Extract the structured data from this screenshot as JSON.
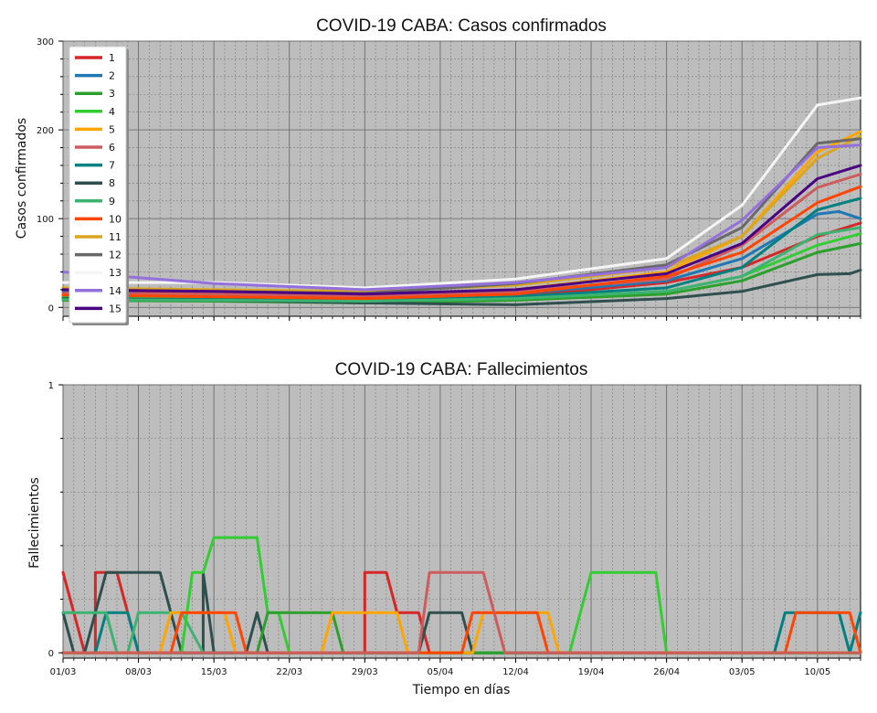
{
  "chart_data": [
    {
      "type": "line",
      "title": "COVID-19 CABA: Casos confirmados",
      "xlabel": "",
      "ylabel": "Casos confirmados",
      "ylim": [
        -10,
        300
      ],
      "yticks": [
        "0",
        "100",
        "200",
        "300"
      ],
      "x_start": "2020-03-01",
      "x_end": "2020-05-14",
      "x_tick_labels": [
        "01/03",
        "08/03",
        "15/03",
        "22/03",
        "29/03",
        "05/04",
        "12/04",
        "19/04",
        "26/04",
        "03/05",
        "10/05"
      ],
      "grid": true,
      "legend": "top-left",
      "series": [
        {
          "name": "1",
          "color": "#d62728",
          "points": [
            [
              "01/03",
              20
            ],
            [
              "15/03",
              15
            ],
            [
              "29/03",
              10
            ],
            [
              "12/04",
              12
            ],
            [
              "26/04",
              28
            ],
            [
              "03/05",
              45
            ],
            [
              "10/05",
              80
            ],
            [
              "14/05",
              95
            ]
          ]
        },
        {
          "name": "2",
          "color": "#1f77b4",
          "points": [
            [
              "01/03",
              18
            ],
            [
              "15/03",
              13
            ],
            [
              "29/03",
              12
            ],
            [
              "12/04",
              15
            ],
            [
              "26/04",
              30
            ],
            [
              "03/05",
              55
            ],
            [
              "10/05",
              105
            ],
            [
              "12/05",
              108
            ],
            [
              "14/05",
              100
            ]
          ]
        },
        {
          "name": "3",
          "color": "#2ca02c",
          "points": [
            [
              "01/03",
              8
            ],
            [
              "15/03",
              7
            ],
            [
              "29/03",
              5
            ],
            [
              "12/04",
              8
            ],
            [
              "26/04",
              15
            ],
            [
              "03/05",
              30
            ],
            [
              "10/05",
              62
            ],
            [
              "14/05",
              72
            ]
          ]
        },
        {
          "name": "4",
          "color": "#32cd32",
          "points": [
            [
              "01/03",
              12
            ],
            [
              "15/03",
              10
            ],
            [
              "29/03",
              8
            ],
            [
              "12/04",
              10
            ],
            [
              "26/04",
              18
            ],
            [
              "03/05",
              35
            ],
            [
              "10/05",
              70
            ],
            [
              "14/05",
              83
            ]
          ]
        },
        {
          "name": "5",
          "color": "#ffa500",
          "points": [
            [
              "01/03",
              15
            ],
            [
              "15/03",
              14
            ],
            [
              "29/03",
              12
            ],
            [
              "12/04",
              20
            ],
            [
              "26/04",
              40
            ],
            [
              "03/05",
              80
            ],
            [
              "10/05",
              175
            ],
            [
              "14/05",
              198
            ]
          ]
        },
        {
          "name": "6",
          "color": "#cd5c5c",
          "points": [
            [
              "01/03",
              16
            ],
            [
              "15/03",
              15
            ],
            [
              "29/03",
              12
            ],
            [
              "12/04",
              18
            ],
            [
              "26/04",
              32
            ],
            [
              "03/05",
              70
            ],
            [
              "10/05",
              135
            ],
            [
              "14/05",
              150
            ]
          ]
        },
        {
          "name": "7",
          "color": "#008080",
          "points": [
            [
              "01/03",
              10
            ],
            [
              "15/03",
              9
            ],
            [
              "29/03",
              8
            ],
            [
              "12/04",
              12
            ],
            [
              "26/04",
              22
            ],
            [
              "03/05",
              45
            ],
            [
              "10/05",
              110
            ],
            [
              "14/05",
              123
            ]
          ]
        },
        {
          "name": "8",
          "color": "#2f4f4f",
          "points": [
            [
              "01/03",
              10
            ],
            [
              "15/03",
              8
            ],
            [
              "29/03",
              5
            ],
            [
              "12/04",
              3
            ],
            [
              "26/04",
              10
            ],
            [
              "03/05",
              18
            ],
            [
              "10/05",
              37
            ],
            [
              "13/05",
              38
            ],
            [
              "14/05",
              42
            ]
          ]
        },
        {
          "name": "9",
          "color": "#3cb371",
          "points": [
            [
              "01/03",
              9
            ],
            [
              "15/03",
              8
            ],
            [
              "29/03",
              7
            ],
            [
              "12/04",
              10
            ],
            [
              "26/04",
              18
            ],
            [
              "03/05",
              35
            ],
            [
              "10/05",
              82
            ],
            [
              "14/05",
              90
            ]
          ]
        },
        {
          "name": "10",
          "color": "#ff4500",
          "points": [
            [
              "01/03",
              14
            ],
            [
              "15/03",
              12
            ],
            [
              "29/03",
              10
            ],
            [
              "12/04",
              15
            ],
            [
              "26/04",
              35
            ],
            [
              "03/05",
              62
            ],
            [
              "10/05",
              118
            ],
            [
              "14/05",
              136
            ]
          ]
        },
        {
          "name": "11",
          "color": "#daa520",
          "points": [
            [
              "01/03",
              22
            ],
            [
              "15/03",
              20
            ],
            [
              "29/03",
              18
            ],
            [
              "12/04",
              25
            ],
            [
              "26/04",
              45
            ],
            [
              "03/05",
              80
            ],
            [
              "10/05",
              168
            ],
            [
              "14/05",
              193
            ]
          ]
        },
        {
          "name": "12",
          "color": "#696969",
          "points": [
            [
              "01/03",
              20
            ],
            [
              "15/03",
              18
            ],
            [
              "29/03",
              16
            ],
            [
              "12/04",
              27
            ],
            [
              "26/04",
              48
            ],
            [
              "03/05",
              90
            ],
            [
              "10/05",
              185
            ],
            [
              "14/05",
              190
            ]
          ]
        },
        {
          "name": "13",
          "color": "#f5f5f5",
          "points": [
            [
              "01/03",
              28
            ],
            [
              "15/03",
              28
            ],
            [
              "29/03",
              22
            ],
            [
              "12/04",
              32
            ],
            [
              "26/04",
              55
            ],
            [
              "03/05",
              115
            ],
            [
              "10/05",
              228
            ],
            [
              "14/05",
              236
            ]
          ]
        },
        {
          "name": "14",
          "color": "#9370db",
          "points": [
            [
              "01/03",
              40
            ],
            [
              "15/03",
              27
            ],
            [
              "29/03",
              20
            ],
            [
              "12/04",
              28
            ],
            [
              "26/04",
              45
            ],
            [
              "03/05",
              98
            ],
            [
              "10/05",
              180
            ],
            [
              "14/05",
              183
            ]
          ]
        },
        {
          "name": "15",
          "color": "#4b0082",
          "points": [
            [
              "01/03",
              20
            ],
            [
              "15/03",
              18
            ],
            [
              "29/03",
              15
            ],
            [
              "12/04",
              20
            ],
            [
              "26/04",
              38
            ],
            [
              "03/05",
              72
            ],
            [
              "10/05",
              145
            ],
            [
              "14/05",
              160
            ]
          ]
        }
      ]
    },
    {
      "type": "line",
      "title": "COVID-19 CABA: Fallecimientos",
      "xlabel": "Tiempo en días",
      "ylabel": "Fallecimientos",
      "ylim": [
        -0.02,
        1
      ],
      "yticks": [
        "0",
        "1"
      ],
      "x_start": "2020-03-01",
      "x_end": "2020-05-14",
      "x_tick_labels": [
        "01/03",
        "08/03",
        "15/03",
        "22/03",
        "29/03",
        "05/04",
        "12/04",
        "19/04",
        "26/04",
        "03/05",
        "10/05"
      ],
      "grid": true,
      "series": [
        {
          "name": "1",
          "color": "#d62728",
          "points": [
            [
              "01/03",
              0.3
            ],
            [
              "03/03",
              0
            ],
            [
              "04/03",
              0
            ],
            [
              "04/03",
              0.3
            ],
            [
              "06/03",
              0.3
            ],
            [
              "08/03",
              0
            ],
            [
              "29/03",
              0
            ],
            [
              "29/03",
              0.3
            ],
            [
              "31/03",
              0.3
            ],
            [
              "01/04",
              0.15
            ],
            [
              "03/04",
              0.15
            ],
            [
              "04/04",
              0
            ],
            [
              "14/05",
              0
            ]
          ]
        },
        {
          "name": "7",
          "color": "#008080",
          "points": [
            [
              "01/03",
              0
            ],
            [
              "04/03",
              0
            ],
            [
              "05/03",
              0.15
            ],
            [
              "07/03",
              0.15
            ],
            [
              "08/03",
              0
            ],
            [
              "06/05",
              0
            ],
            [
              "07/05",
              0.15
            ],
            [
              "10/05",
              0.15
            ],
            [
              "12/05",
              0.15
            ],
            [
              "13/05",
              0
            ],
            [
              "14/05",
              0.15
            ]
          ]
        },
        {
          "name": "8",
          "color": "#2f4f4f",
          "points": [
            [
              "01/03",
              0.15
            ],
            [
              "02/03",
              0
            ],
            [
              "03/03",
              0
            ],
            [
              "05/03",
              0.3
            ],
            [
              "10/03",
              0.3
            ],
            [
              "12/03",
              0
            ],
            [
              "14/03",
              0
            ],
            [
              "14/03",
              0.3
            ],
            [
              "15/03",
              0
            ],
            [
              "18/03",
              0
            ],
            [
              "19/03",
              0.15
            ],
            [
              "20/03",
              0
            ],
            [
              "03/04",
              0
            ],
            [
              "04/04",
              0.15
            ],
            [
              "07/04",
              0.15
            ],
            [
              "08/04",
              0
            ],
            [
              "14/05",
              0
            ]
          ]
        },
        {
          "name": "9",
          "color": "#3cb371",
          "points": [
            [
              "01/03",
              0.15
            ],
            [
              "05/03",
              0.15
            ],
            [
              "06/03",
              0
            ],
            [
              "07/03",
              0
            ],
            [
              "08/03",
              0.15
            ],
            [
              "12/03",
              0.15
            ],
            [
              "14/03",
              0
            ],
            [
              "14/05",
              0
            ]
          ]
        },
        {
          "name": "4",
          "color": "#32cd32",
          "points": [
            [
              "01/03",
              0
            ],
            [
              "12/03",
              0
            ],
            [
              "13/03",
              0.3
            ],
            [
              "14/03",
              0.3
            ],
            [
              "15/03",
              0.43
            ],
            [
              "19/03",
              0.43
            ],
            [
              "20/03",
              0.15
            ],
            [
              "21/03",
              0.15
            ],
            [
              "22/03",
              0
            ],
            [
              "17/04",
              0
            ],
            [
              "19/04",
              0.3
            ],
            [
              "25/04",
              0.3
            ],
            [
              "26/04",
              0
            ],
            [
              "14/05",
              0
            ]
          ]
        },
        {
          "name": "3",
          "color": "#2ca02c",
          "points": [
            [
              "01/03",
              0
            ],
            [
              "19/03",
              0
            ],
            [
              "20/03",
              0.15
            ],
            [
              "26/03",
              0.15
            ],
            [
              "27/03",
              0
            ],
            [
              "14/05",
              0
            ]
          ]
        },
        {
          "name": "5",
          "color": "#ffa500",
          "points": [
            [
              "01/03",
              0
            ],
            [
              "10/03",
              0
            ],
            [
              "11/03",
              0.15
            ],
            [
              "16/03",
              0.15
            ],
            [
              "17/03",
              0
            ],
            [
              "25/03",
              0
            ],
            [
              "26/03",
              0.15
            ],
            [
              "01/04",
              0.15
            ],
            [
              "02/04",
              0
            ],
            [
              "08/04",
              0
            ],
            [
              "09/04",
              0.15
            ],
            [
              "15/04",
              0.15
            ],
            [
              "16/04",
              0
            ],
            [
              "14/05",
              0
            ]
          ]
        },
        {
          "name": "10",
          "color": "#ff4500",
          "points": [
            [
              "01/03",
              0
            ],
            [
              "11/03",
              0
            ],
            [
              "12/03",
              0.15
            ],
            [
              "17/03",
              0.15
            ],
            [
              "18/03",
              0
            ],
            [
              "07/04",
              0
            ],
            [
              "08/04",
              0.15
            ],
            [
              "14/04",
              0.15
            ],
            [
              "15/04",
              0
            ],
            [
              "07/05",
              0
            ],
            [
              "08/05",
              0.15
            ],
            [
              "13/05",
              0.15
            ],
            [
              "14/05",
              0
            ]
          ]
        },
        {
          "name": "6",
          "color": "#cd5c5c",
          "points": [
            [
              "01/03",
              0
            ],
            [
              "03/04",
              0
            ],
            [
              "04/04",
              0.3
            ],
            [
              "09/04",
              0.3
            ],
            [
              "11/04",
              0
            ],
            [
              "14/05",
              0
            ]
          ]
        }
      ]
    }
  ]
}
